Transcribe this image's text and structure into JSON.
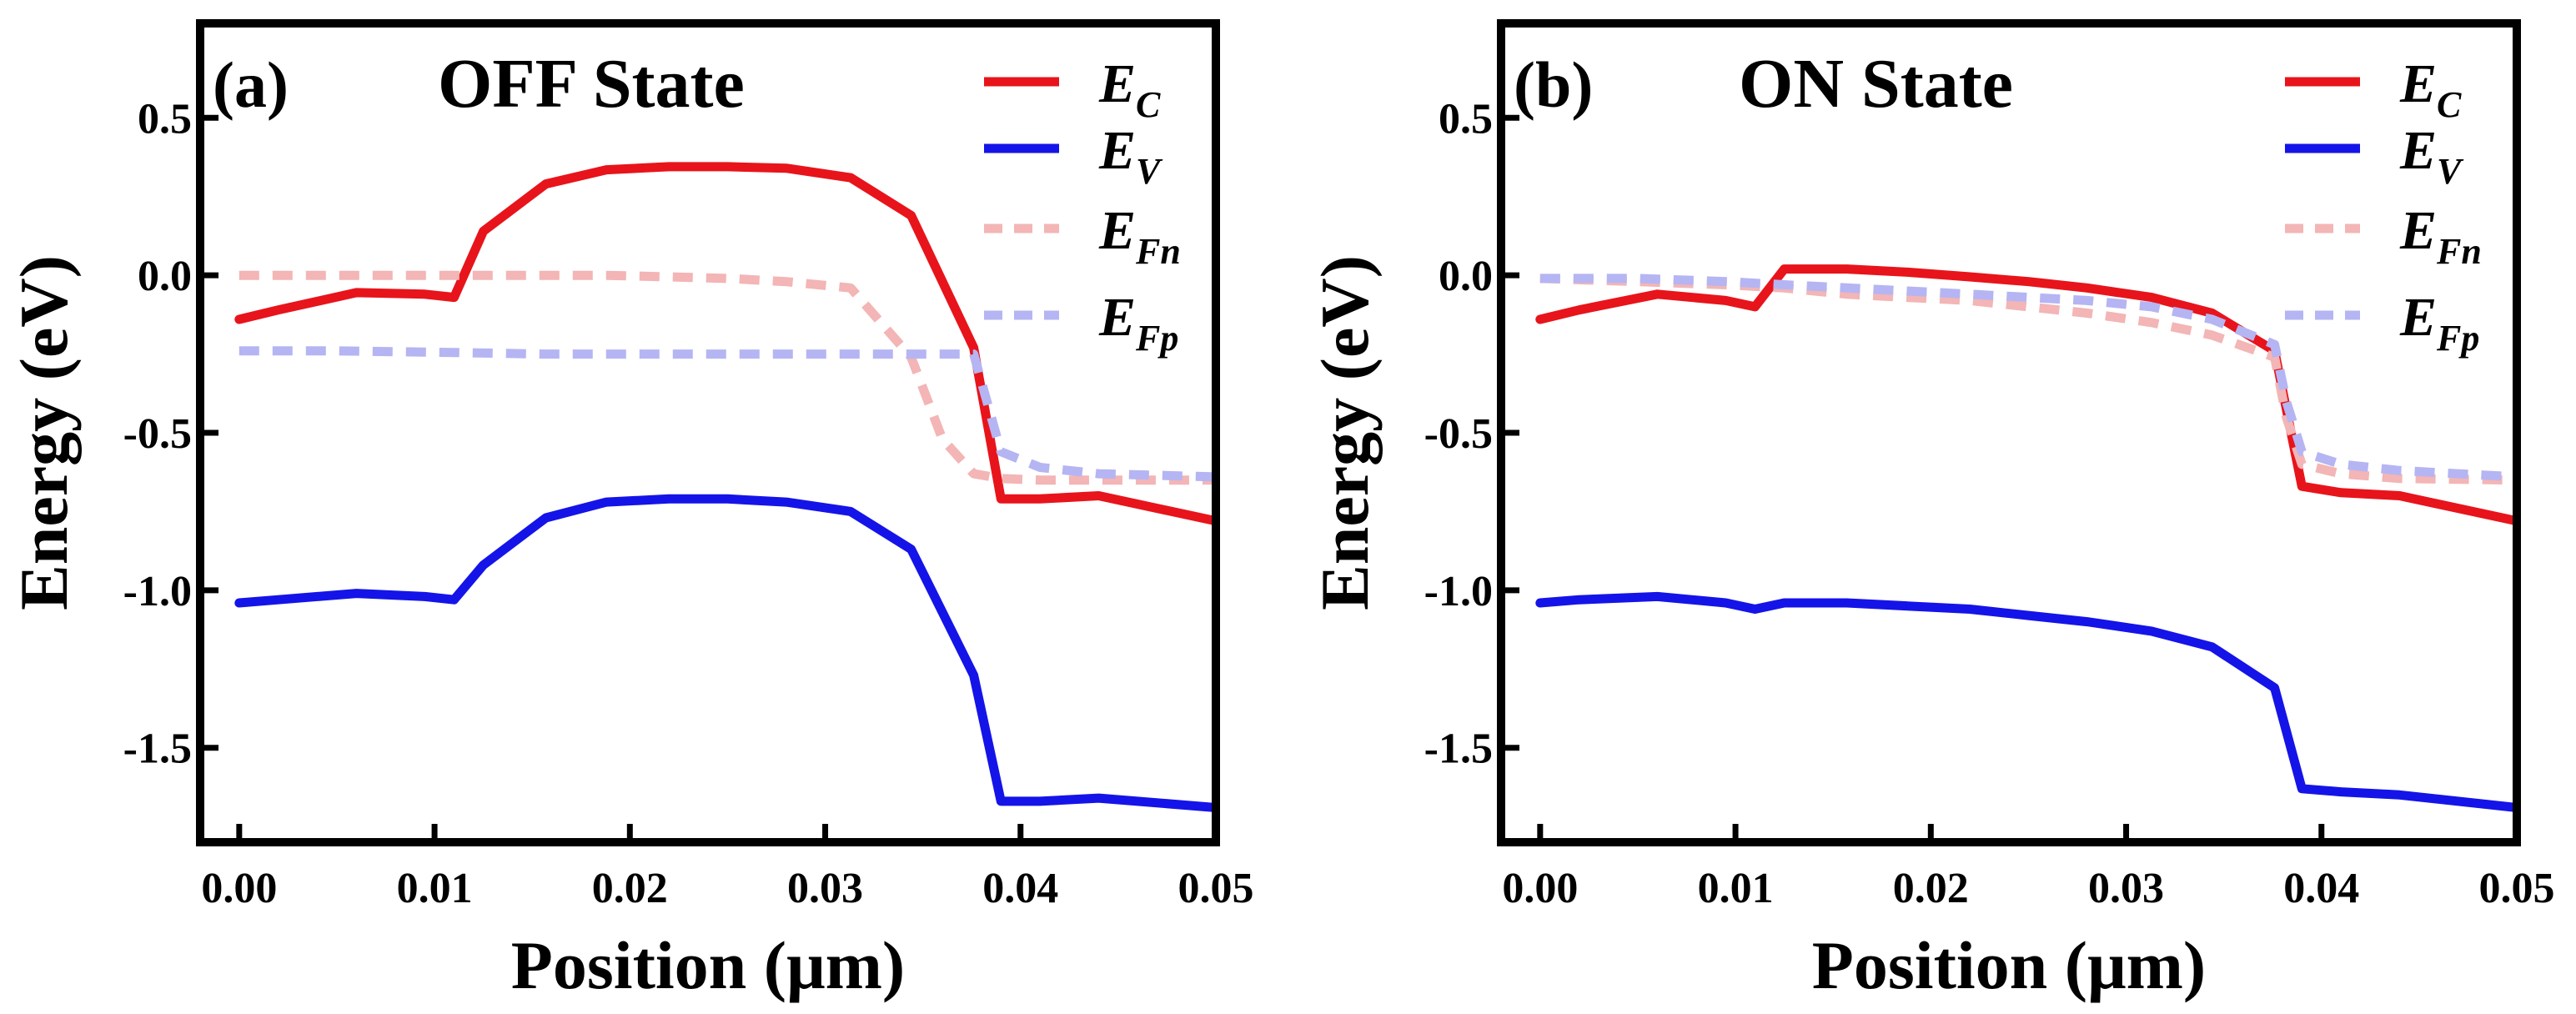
{
  "figure": {
    "panels": [
      {
        "label": "(a)",
        "title": "OFF State",
        "xlabel": "Position (μm)",
        "ylabel": "Energy (eV)",
        "xticks": [
          "0.00",
          "0.01",
          "0.02",
          "0.03",
          "0.04",
          "0.05"
        ],
        "yticks": [
          "0.5",
          "0.0",
          "-0.5",
          "-1.0",
          "-1.5"
        ],
        "legend": [
          {
            "main": "E",
            "sub": "C"
          },
          {
            "main": "E",
            "sub": "V"
          },
          {
            "main": "E",
            "sub": "Fn"
          },
          {
            "main": "E",
            "sub": "Fp"
          }
        ]
      },
      {
        "label": "(b)",
        "title": "ON State",
        "xlabel": "Position (μm)",
        "ylabel": "Energy (eV)",
        "xticks": [
          "0.00",
          "0.01",
          "0.02",
          "0.03",
          "0.04",
          "0.05"
        ],
        "yticks": [
          "0.5",
          "0.0",
          "-0.5",
          "-1.0",
          "-1.5"
        ],
        "legend": [
          {
            "main": "E",
            "sub": "C"
          },
          {
            "main": "E",
            "sub": "V"
          },
          {
            "main": "E",
            "sub": "Fn"
          },
          {
            "main": "E",
            "sub": "Fp"
          }
        ]
      }
    ]
  },
  "chart_data": [
    {
      "type": "line",
      "title": "OFF State",
      "xlabel": "Position (μm)",
      "ylabel": "Energy (eV)",
      "xlim": [
        -0.002,
        0.05
      ],
      "ylim": [
        -1.8,
        0.8
      ],
      "xticks": [
        0.0,
        0.01,
        0.02,
        0.03,
        0.04,
        0.05
      ],
      "yticks": [
        0.5,
        0.0,
        -0.5,
        -1.0,
        -1.5
      ],
      "legend_position": "top-right",
      "series": [
        {
          "name": "E_C",
          "color": "#e8141b",
          "dash": "solid",
          "opacity": 1,
          "x": [
            0,
            0.002,
            0.006,
            0.0095,
            0.011,
            0.0125,
            0.0157,
            0.0188,
            0.022,
            0.025,
            0.028,
            0.0313,
            0.0344,
            0.0376,
            0.039,
            0.041,
            0.044,
            0.05
          ],
          "y": [
            -0.14,
            -0.11,
            -0.055,
            -0.06,
            -0.07,
            0.14,
            0.29,
            0.335,
            0.345,
            0.345,
            0.34,
            0.31,
            0.19,
            -0.23,
            -0.71,
            -0.71,
            -0.7,
            -0.78
          ]
        },
        {
          "name": "E_V",
          "color": "#1414e8",
          "dash": "solid",
          "opacity": 1,
          "x": [
            0,
            0.002,
            0.006,
            0.0095,
            0.011,
            0.0125,
            0.0157,
            0.0188,
            0.022,
            0.025,
            0.028,
            0.0313,
            0.0344,
            0.0376,
            0.039,
            0.041,
            0.044,
            0.05
          ],
          "y": [
            -1.04,
            -1.03,
            -1.01,
            -1.02,
            -1.03,
            -0.92,
            -0.77,
            -0.72,
            -0.71,
            -0.71,
            -0.72,
            -0.75,
            -0.87,
            -1.27,
            -1.67,
            -1.67,
            -1.66,
            -1.69
          ]
        },
        {
          "name": "E_Fn",
          "color": "#f3b5b5",
          "dash": "dashed",
          "opacity": 1,
          "x": [
            0,
            0.005,
            0.011,
            0.0157,
            0.0188,
            0.022,
            0.025,
            0.028,
            0.0313,
            0.0344,
            0.036,
            0.0376,
            0.039,
            0.041,
            0.044,
            0.05
          ],
          "y": [
            0.0,
            0.0,
            0.0,
            0.0,
            0.0,
            -0.005,
            -0.01,
            -0.02,
            -0.04,
            -0.26,
            -0.52,
            -0.63,
            -0.645,
            -0.65,
            -0.65,
            -0.65
          ]
        },
        {
          "name": "E_Fp",
          "color": "#b5b5f3",
          "dash": "dashed",
          "opacity": 1,
          "x": [
            0,
            0.005,
            0.011,
            0.0157,
            0.0188,
            0.022,
            0.025,
            0.028,
            0.0313,
            0.0344,
            0.036,
            0.0376,
            0.039,
            0.041,
            0.044,
            0.05
          ],
          "y": [
            -0.24,
            -0.24,
            -0.245,
            -0.25,
            -0.25,
            -0.25,
            -0.25,
            -0.25,
            -0.25,
            -0.25,
            -0.25,
            -0.25,
            -0.56,
            -0.61,
            -0.63,
            -0.64
          ]
        }
      ]
    },
    {
      "type": "line",
      "title": "ON State",
      "xlabel": "Position (μm)",
      "ylabel": "Energy (eV)",
      "xlim": [
        -0.002,
        0.05
      ],
      "ylim": [
        -1.8,
        0.8
      ],
      "xticks": [
        0.0,
        0.01,
        0.02,
        0.03,
        0.04,
        0.05
      ],
      "yticks": [
        0.5,
        0.0,
        -0.5,
        -1.0,
        -1.5
      ],
      "legend_position": "top-right",
      "series": [
        {
          "name": "E_C",
          "color": "#e8141b",
          "dash": "solid",
          "opacity": 1,
          "x": [
            0,
            0.002,
            0.006,
            0.0095,
            0.011,
            0.0125,
            0.0157,
            0.0188,
            0.022,
            0.025,
            0.028,
            0.0313,
            0.0344,
            0.0376,
            0.039,
            0.041,
            0.044,
            0.05
          ],
          "y": [
            -0.14,
            -0.11,
            -0.06,
            -0.08,
            -0.1,
            0.02,
            0.02,
            0.01,
            -0.005,
            -0.02,
            -0.04,
            -0.07,
            -0.12,
            -0.24,
            -0.67,
            -0.69,
            -0.7,
            -0.78
          ]
        },
        {
          "name": "E_V",
          "color": "#1414e8",
          "dash": "solid",
          "opacity": 1,
          "x": [
            0,
            0.002,
            0.006,
            0.0095,
            0.011,
            0.0125,
            0.0157,
            0.0188,
            0.022,
            0.025,
            0.028,
            0.0313,
            0.0344,
            0.0376,
            0.039,
            0.041,
            0.044,
            0.05
          ],
          "y": [
            -1.04,
            -1.03,
            -1.02,
            -1.04,
            -1.06,
            -1.04,
            -1.04,
            -1.05,
            -1.06,
            -1.08,
            -1.1,
            -1.13,
            -1.18,
            -1.31,
            -1.63,
            -1.64,
            -1.65,
            -1.69
          ]
        },
        {
          "name": "E_Fn",
          "color": "#f3b5b5",
          "dash": "dashed",
          "opacity": 1,
          "x": [
            0,
            0.005,
            0.0095,
            0.0125,
            0.0157,
            0.0188,
            0.022,
            0.025,
            0.028,
            0.0313,
            0.0344,
            0.0376,
            0.0382,
            0.039,
            0.041,
            0.044,
            0.05
          ],
          "y": [
            -0.01,
            -0.02,
            -0.03,
            -0.04,
            -0.06,
            -0.07,
            -0.08,
            -0.1,
            -0.12,
            -0.15,
            -0.19,
            -0.26,
            -0.45,
            -0.6,
            -0.63,
            -0.645,
            -0.65
          ]
        },
        {
          "name": "E_Fp",
          "color": "#b5b5f3",
          "dash": "dashed",
          "opacity": 1,
          "x": [
            0,
            0.005,
            0.0095,
            0.0125,
            0.0157,
            0.0188,
            0.022,
            0.025,
            0.028,
            0.0313,
            0.0344,
            0.0376,
            0.0382,
            0.039,
            0.041,
            0.044,
            0.05
          ],
          "y": [
            -0.01,
            -0.01,
            -0.02,
            -0.03,
            -0.04,
            -0.05,
            -0.06,
            -0.07,
            -0.08,
            -0.1,
            -0.14,
            -0.22,
            -0.4,
            -0.56,
            -0.6,
            -0.62,
            -0.64
          ]
        }
      ]
    }
  ]
}
